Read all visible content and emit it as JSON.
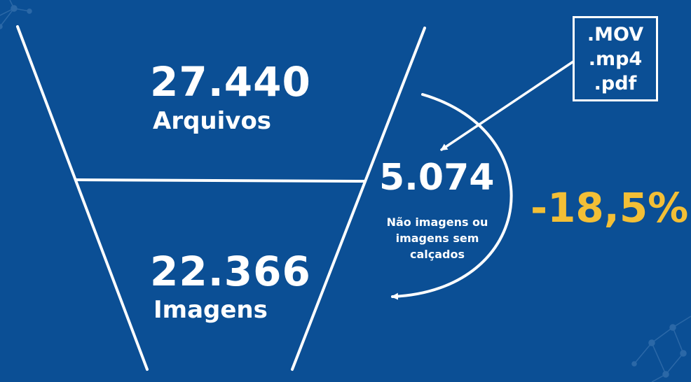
{
  "colors": {
    "background": "#0b4f95",
    "text": "#ffffff",
    "accent": "#f3bf36"
  },
  "funnel": {
    "top": {
      "number": "27.440",
      "label": "Arquivos"
    },
    "bottom": {
      "number": "22.366",
      "label": "Imagens"
    }
  },
  "excluded": {
    "number": "5.074",
    "note": "Não imagens ou imagens sem calçados"
  },
  "formats": [
    ".MOV",
    ".mp4",
    ".pdf"
  ],
  "percentage": "-18,5%",
  "icons": [
    "network-decoration-icon"
  ]
}
